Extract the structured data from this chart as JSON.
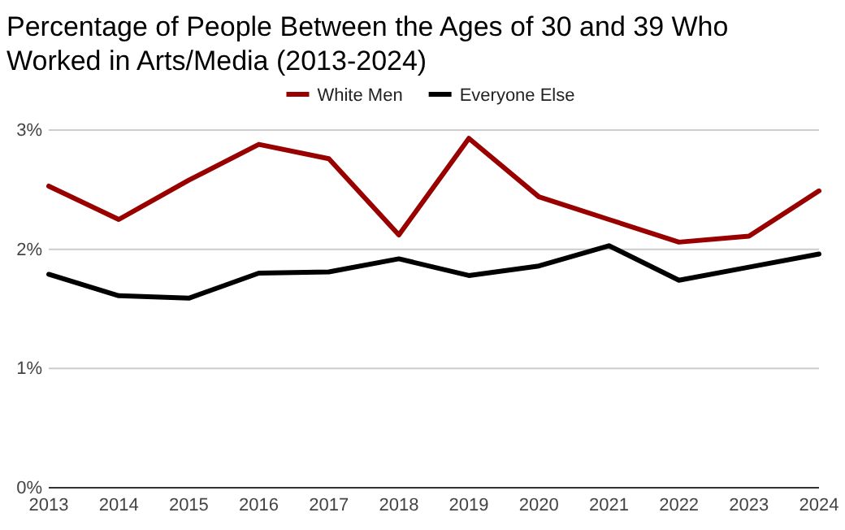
{
  "chart_data": {
    "type": "line",
    "title": "Percentage of People Between the Ages of 30 and 39 Who Worked in Arts/Media (2013-2024)",
    "x": [
      2013,
      2014,
      2015,
      2016,
      2017,
      2018,
      2019,
      2020,
      2021,
      2022,
      2023,
      2024
    ],
    "xlim": [
      2013,
      2024
    ],
    "xticks": [
      2013,
      2014,
      2015,
      2016,
      2017,
      2018,
      2019,
      2020,
      2021,
      2022,
      2023,
      2024
    ],
    "ylim": [
      0,
      3
    ],
    "yticks": [
      {
        "value": 0,
        "label": "0%"
      },
      {
        "value": 1,
        "label": "1%"
      },
      {
        "value": 2,
        "label": "2%"
      },
      {
        "value": 3,
        "label": "3%"
      }
    ],
    "grid": "y",
    "legend": "top",
    "marker": "none",
    "line_style": "solid",
    "series": [
      {
        "name": "White Men",
        "color": "#990000",
        "values": [
          2.53,
          2.25,
          2.58,
          2.88,
          2.76,
          2.12,
          2.93,
          2.44,
          2.25,
          2.06,
          2.11,
          2.49
        ]
      },
      {
        "name": "Everyone Else",
        "color": "#000000",
        "values": [
          1.79,
          1.61,
          1.59,
          1.8,
          1.81,
          1.92,
          1.78,
          1.86,
          2.03,
          1.74,
          1.85,
          1.96
        ]
      }
    ]
  }
}
